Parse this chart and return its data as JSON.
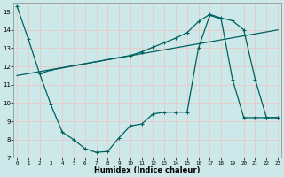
{
  "xlabel": "Humidex (Indice chaleur)",
  "bg_color": "#cde8e8",
  "grid_color": "#e8c8c8",
  "line_color": "#006060",
  "line1_x": [
    0,
    1,
    2,
    3,
    4,
    5,
    6,
    7,
    8,
    9,
    10,
    11,
    12,
    13,
    14,
    15,
    16,
    17,
    18,
    19,
    20,
    21,
    22,
    23
  ],
  "line1_y": [
    15.3,
    13.5,
    11.6,
    9.9,
    8.4,
    8.0,
    7.5,
    7.3,
    7.35,
    8.1,
    8.75,
    8.85,
    9.4,
    9.5,
    9.5,
    9.5,
    13.0,
    14.8,
    14.6,
    11.3,
    9.2,
    9.2,
    9.2,
    9.2
  ],
  "line2_x": [
    0,
    23
  ],
  "line2_y": [
    11.5,
    14.0
  ],
  "line3_x": [
    2,
    3,
    10,
    11,
    12,
    13,
    14,
    15,
    16,
    17,
    18,
    19,
    20,
    21,
    22,
    23
  ],
  "line3_y": [
    11.6,
    11.8,
    12.6,
    12.8,
    13.05,
    13.3,
    13.55,
    13.85,
    14.45,
    14.85,
    14.65,
    14.5,
    14.0,
    11.3,
    9.2,
    9.2
  ],
  "xlim": [
    0,
    23
  ],
  "ylim": [
    7,
    15.5
  ],
  "yticks": [
    7,
    8,
    9,
    10,
    11,
    12,
    13,
    14,
    15
  ],
  "xticks": [
    0,
    1,
    2,
    3,
    4,
    5,
    6,
    7,
    8,
    9,
    10,
    11,
    12,
    13,
    14,
    15,
    16,
    17,
    18,
    19,
    20,
    21,
    22,
    23
  ]
}
